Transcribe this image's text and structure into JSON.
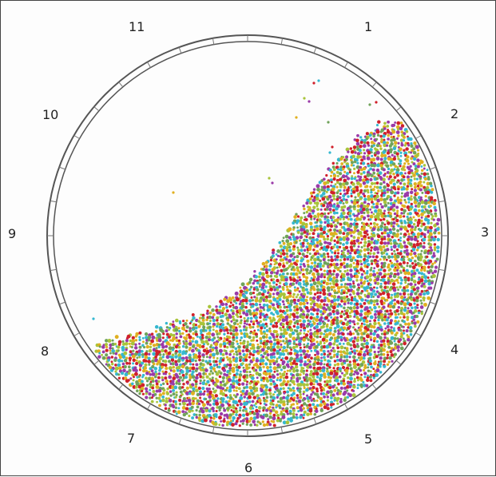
{
  "figure": {
    "clock_labels": [
      {
        "text": "1"
      },
      {
        "text": "2"
      },
      {
        "text": "3"
      },
      {
        "text": "4"
      },
      {
        "text": "5"
      },
      {
        "text": "6"
      },
      {
        "text": "7"
      },
      {
        "text": "8"
      },
      {
        "text": "9"
      },
      {
        "text": "10"
      },
      {
        "text": "11"
      }
    ],
    "particle_colors": [
      "#d0202a",
      "#35b8d0",
      "#a8c43a",
      "#9a3aa8",
      "#e0b020",
      "#6fa35a"
    ]
  }
}
